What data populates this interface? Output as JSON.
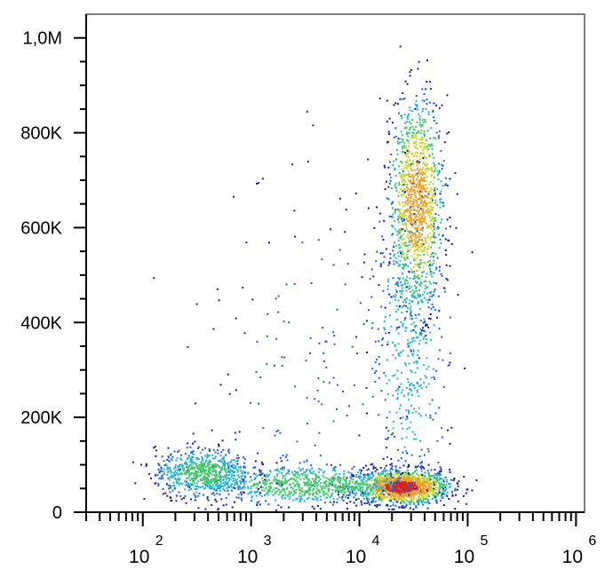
{
  "chart_data": {
    "type": "scatter",
    "title": "",
    "xlabel": "",
    "ylabel": "",
    "x_scale": "log",
    "xlim": [
      30,
      1200000
    ],
    "ylim": [
      0,
      1050000
    ],
    "y_ticks": [
      {
        "value": 0,
        "label": "0"
      },
      {
        "value": 200000,
        "label": "200K"
      },
      {
        "value": 400000,
        "label": "400K"
      },
      {
        "value": 600000,
        "label": "600K"
      },
      {
        "value": 800000,
        "label": "800K"
      },
      {
        "value": 1000000,
        "label": "1,0M"
      }
    ],
    "x_ticks": [
      {
        "value": 100,
        "base": "10",
        "exponent": "2"
      },
      {
        "value": 1000,
        "base": "10",
        "exponent": "3"
      },
      {
        "value": 10000,
        "base": "10",
        "exponent": "4"
      },
      {
        "value": 100000,
        "base": "10",
        "exponent": "5"
      },
      {
        "value": 1000000,
        "base": "10",
        "exponent": "6"
      }
    ],
    "density_colors": [
      "#1a1aa6",
      "#1f5fe0",
      "#1fb4d8",
      "#3ec96a",
      "#c8d62a",
      "#f0a020",
      "#e82010"
    ],
    "populations": [
      {
        "x_log10_center": 4.38,
        "y_center": 55000,
        "x_log10_spread": 0.22,
        "y_spread": 18000,
        "relative_density": 1.0
      },
      {
        "x_log10_center": 3.5,
        "y_center": 60000,
        "x_log10_spread": 0.45,
        "y_spread": 20000,
        "relative_density": 0.55
      },
      {
        "x_log10_center": 2.55,
        "y_center": 85000,
        "x_log10_spread": 0.22,
        "y_spread": 25000,
        "relative_density": 0.5
      },
      {
        "x_log10_center": 4.52,
        "y_center": 650000,
        "x_log10_spread": 0.12,
        "y_spread": 110000,
        "relative_density": 0.85
      },
      {
        "x_log10_center": 4.45,
        "y_center": 360000,
        "x_log10_spread": 0.18,
        "y_spread": 180000,
        "relative_density": 0.35
      },
      {
        "x_log10_center": 3.6,
        "y_center": 320000,
        "x_log10_spread": 0.5,
        "y_spread": 200000,
        "relative_density": 0.12
      }
    ]
  }
}
